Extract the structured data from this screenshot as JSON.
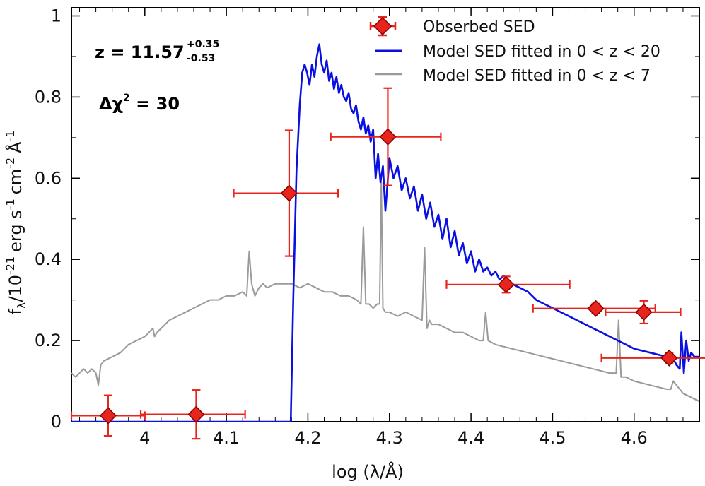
{
  "chart_data": {
    "type": "scatter",
    "xlabel": "log (λ/Å)",
    "ylabel": {
      "f": "f",
      "sub": "λ",
      "rest": "/10",
      "exp": "-21",
      "unit": "erg s",
      "exp2": "-1",
      "unit2": "cm",
      "exp3": "-2",
      "unit3": "Å",
      "exp4": "-1"
    },
    "xlim": [
      3.91,
      4.68
    ],
    "ylim": [
      0,
      1.02
    ],
    "xticks": [
      {
        "value": 4.0,
        "label": "4"
      },
      {
        "value": 4.1,
        "label": "4.1"
      },
      {
        "value": 4.2,
        "label": "4.2"
      },
      {
        "value": 4.3,
        "label": "4.3"
      },
      {
        "value": 4.4,
        "label": "4.4"
      },
      {
        "value": 4.5,
        "label": "4.5"
      },
      {
        "value": 4.6,
        "label": "4.6"
      }
    ],
    "yticks": [
      {
        "value": 0,
        "label": "0"
      },
      {
        "value": 0.2,
        "label": "0.2"
      },
      {
        "value": 0.4,
        "label": "0.4"
      },
      {
        "value": 0.6,
        "label": "0.6"
      },
      {
        "value": 0.8,
        "label": "0.8"
      },
      {
        "value": 1.0,
        "label": "1"
      }
    ],
    "legend": {
      "placement": "top-right",
      "entries": [
        "Obserbed SED",
        "Model SED fitted in 0 < z < 20",
        "Model SED fitted in 0 < z < 7"
      ]
    },
    "annotations": {
      "redshift_prefix": "z = 11.57",
      "redshift_upper": "+0.35",
      "redshift_lower": "-0.53",
      "chi_prefix": "Δχ",
      "chi_exp": "2",
      "chi_suffix": " = 30"
    },
    "colors": {
      "observed": "#e8251c",
      "observed_edge": "#8b0000",
      "model_high_z": "#0a10e0",
      "model_low_z": "#9a9a9a"
    },
    "observed": [
      {
        "x": 3.955,
        "y": 0.015,
        "xerr_low": 0.045,
        "xerr_high": 0.045,
        "yerr": 0.05
      },
      {
        "x": 4.063,
        "y": 0.018,
        "xerr_low": 0.068,
        "xerr_high": 0.06,
        "yerr": 0.06
      },
      {
        "x": 4.177,
        "y": 0.563,
        "xerr_low": 0.068,
        "xerr_high": 0.06,
        "yerr": 0.155
      },
      {
        "x": 4.298,
        "y": 0.702,
        "xerr_low": 0.07,
        "xerr_high": 0.065,
        "yerr": 0.12
      },
      {
        "x": 4.443,
        "y": 0.338,
        "xerr_low": 0.073,
        "xerr_high": 0.078,
        "yerr": 0.02
      },
      {
        "x": 4.553,
        "y": 0.279,
        "xerr_low": 0.077,
        "xerr_high": 0.073,
        "yerr": 0.012
      },
      {
        "x": 4.612,
        "y": 0.27,
        "xerr_low": 0.047,
        "xerr_high": 0.045,
        "yerr": 0.028
      },
      {
        "x": 4.643,
        "y": 0.157,
        "xerr_low": 0.083,
        "xerr_high": 0.045,
        "yerr": 0.012
      }
    ],
    "series": [
      {
        "name": "Model SED fitted in 0 < z < 20",
        "x": [
          3.91,
          4.179,
          4.182,
          4.186,
          4.19,
          4.193,
          4.196,
          4.199,
          4.202,
          4.205,
          4.208,
          4.211,
          4.214,
          4.217,
          4.22,
          4.223,
          4.226,
          4.229,
          4.232,
          4.235,
          4.238,
          4.241,
          4.244,
          4.247,
          4.25,
          4.253,
          4.256,
          4.259,
          4.262,
          4.265,
          4.268,
          4.271,
          4.274,
          4.277,
          4.28,
          4.283,
          4.286,
          4.289,
          4.292,
          4.295,
          4.3,
          4.305,
          4.31,
          4.315,
          4.32,
          4.325,
          4.33,
          4.335,
          4.34,
          4.345,
          4.35,
          4.355,
          4.36,
          4.365,
          4.37,
          4.375,
          4.38,
          4.385,
          4.39,
          4.395,
          4.4,
          4.405,
          4.41,
          4.415,
          4.42,
          4.425,
          4.43,
          4.435,
          4.44,
          4.445,
          4.45,
          4.46,
          4.47,
          4.48,
          4.49,
          4.5,
          4.51,
          4.52,
          4.53,
          4.54,
          4.55,
          4.56,
          4.57,
          4.58,
          4.59,
          4.6,
          4.61,
          4.62,
          4.63,
          4.64,
          4.648,
          4.652,
          4.656,
          4.658,
          4.661,
          4.664,
          4.667,
          4.67,
          4.674,
          4.68
        ],
        "y": [
          0.0,
          0.0,
          0.3,
          0.62,
          0.78,
          0.86,
          0.88,
          0.86,
          0.83,
          0.88,
          0.85,
          0.9,
          0.93,
          0.88,
          0.86,
          0.89,
          0.84,
          0.86,
          0.82,
          0.85,
          0.81,
          0.83,
          0.8,
          0.79,
          0.81,
          0.77,
          0.76,
          0.78,
          0.74,
          0.72,
          0.75,
          0.71,
          0.73,
          0.69,
          0.72,
          0.6,
          0.66,
          0.59,
          0.63,
          0.52,
          0.65,
          0.6,
          0.63,
          0.57,
          0.6,
          0.55,
          0.58,
          0.52,
          0.56,
          0.5,
          0.54,
          0.48,
          0.51,
          0.45,
          0.5,
          0.43,
          0.47,
          0.41,
          0.44,
          0.39,
          0.42,
          0.37,
          0.4,
          0.37,
          0.38,
          0.36,
          0.37,
          0.35,
          0.36,
          0.35,
          0.34,
          0.33,
          0.32,
          0.3,
          0.29,
          0.28,
          0.27,
          0.26,
          0.25,
          0.24,
          0.23,
          0.22,
          0.21,
          0.2,
          0.19,
          0.18,
          0.175,
          0.17,
          0.165,
          0.16,
          0.155,
          0.14,
          0.13,
          0.22,
          0.12,
          0.2,
          0.15,
          0.17,
          0.16,
          0.16
        ]
      },
      {
        "name": "Model SED fitted in 0 < z < 7",
        "x": [
          3.91,
          3.915,
          3.92,
          3.925,
          3.93,
          3.935,
          3.94,
          3.943,
          3.946,
          3.95,
          3.96,
          3.97,
          3.98,
          3.99,
          4.0,
          4.005,
          4.01,
          4.012,
          4.015,
          4.02,
          4.03,
          4.04,
          4.05,
          4.06,
          4.07,
          4.08,
          4.09,
          4.1,
          4.11,
          4.12,
          4.125,
          4.128,
          4.131,
          4.135,
          4.14,
          4.145,
          4.15,
          4.16,
          4.17,
          4.18,
          4.19,
          4.2,
          4.21,
          4.22,
          4.23,
          4.24,
          4.25,
          4.26,
          4.265,
          4.268,
          4.271,
          4.275,
          4.28,
          4.285,
          4.288,
          4.29,
          4.292,
          4.295,
          4.3,
          4.31,
          4.32,
          4.33,
          4.34,
          4.343,
          4.346,
          4.349,
          4.352,
          4.36,
          4.37,
          4.38,
          4.39,
          4.4,
          4.41,
          4.415,
          4.418,
          4.421,
          4.43,
          4.45,
          4.47,
          4.49,
          4.51,
          4.53,
          4.55,
          4.57,
          4.578,
          4.581,
          4.584,
          4.59,
          4.6,
          4.62,
          4.64,
          4.645,
          4.648,
          4.66,
          4.68
        ],
        "y": [
          0.12,
          0.11,
          0.12,
          0.13,
          0.12,
          0.13,
          0.12,
          0.09,
          0.14,
          0.15,
          0.16,
          0.17,
          0.19,
          0.2,
          0.21,
          0.22,
          0.23,
          0.21,
          0.22,
          0.23,
          0.25,
          0.26,
          0.27,
          0.28,
          0.29,
          0.3,
          0.3,
          0.31,
          0.31,
          0.32,
          0.31,
          0.42,
          0.34,
          0.31,
          0.33,
          0.34,
          0.33,
          0.34,
          0.34,
          0.34,
          0.33,
          0.34,
          0.33,
          0.32,
          0.32,
          0.31,
          0.31,
          0.3,
          0.29,
          0.48,
          0.29,
          0.29,
          0.28,
          0.29,
          0.29,
          0.59,
          0.28,
          0.27,
          0.27,
          0.26,
          0.27,
          0.26,
          0.25,
          0.43,
          0.23,
          0.25,
          0.24,
          0.24,
          0.23,
          0.22,
          0.22,
          0.21,
          0.2,
          0.2,
          0.27,
          0.2,
          0.19,
          0.18,
          0.17,
          0.16,
          0.15,
          0.14,
          0.13,
          0.12,
          0.12,
          0.25,
          0.11,
          0.11,
          0.1,
          0.09,
          0.08,
          0.08,
          0.1,
          0.07,
          0.05
        ]
      }
    ]
  }
}
